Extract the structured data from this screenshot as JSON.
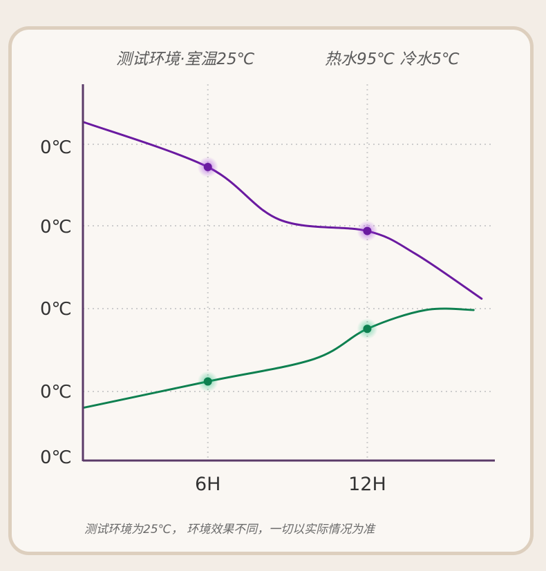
{
  "captions": {
    "environment": "测试环境·室温25℃",
    "water": "热水95℃ 冷水5℃",
    "footnote": "测试环境为25℃， 环境效果不同，一切以实际情况为准"
  },
  "colors": {
    "hot": "#6a1aa0",
    "cold": "#0e8050",
    "axis": "#5a3a68",
    "grid": "#cccccc"
  },
  "chart_data": {
    "type": "line",
    "x_ticks": [
      {
        "label": "6H",
        "x": 6
      },
      {
        "label": "12H",
        "x": 12
      }
    ],
    "y_ticks": [
      "0℃",
      "0℃",
      "0℃",
      "0℃",
      "0℃"
    ],
    "xlim": [
      1.3,
      16.8
    ],
    "series": [
      {
        "key": "hot",
        "points": [
          [
            1.3,
            90
          ],
          [
            6,
            78
          ],
          [
            8.7,
            64
          ],
          [
            12,
            61
          ],
          [
            13.8,
            55
          ],
          [
            16.3,
            43
          ]
        ],
        "markers": [
          [
            6,
            78
          ],
          [
            12,
            61
          ]
        ]
      },
      {
        "key": "cold",
        "points": [
          [
            1.3,
            14
          ],
          [
            6,
            21
          ],
          [
            10,
            27
          ],
          [
            12,
            35
          ],
          [
            14.2,
            40
          ],
          [
            16,
            40
          ]
        ],
        "markers": [
          [
            6,
            21
          ],
          [
            12,
            35
          ]
        ]
      }
    ]
  }
}
